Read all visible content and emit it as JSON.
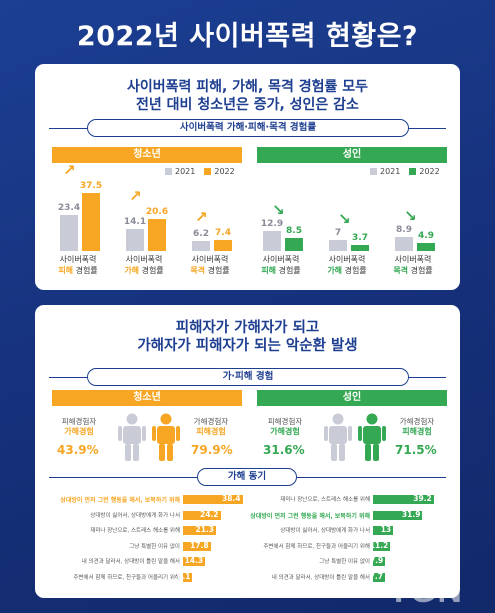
{
  "page_title": "2022년 사이버폭력 현황은?",
  "section1": {
    "headline1": "사이버폭력 피해, 가해, 목격 경험률 모두",
    "headline2": "전년 대비 청소년은 증가, 성인은 감소",
    "pill": "사이버폭력 가해·피해·목격 경험률",
    "youth_label": "청소년",
    "adult_label": "성인",
    "legend_2021": "2021",
    "legend_2022": "2022",
    "cat_prefix": "사이버폭력",
    "cat_suffix": "경험률",
    "cat_victim": "피해",
    "cat_offender": "가해",
    "cat_witness": "목격",
    "colors": {
      "gray": "#c9cbd6",
      "youth": "#f6a623",
      "adult": "#34a853"
    }
  },
  "chart_data": [
    {
      "type": "bar",
      "title": "청소년",
      "categories": [
        "피해",
        "가해",
        "목격"
      ],
      "series": [
        {
          "name": "2021",
          "values": [
            23.4,
            14.1,
            6.2
          ]
        },
        {
          "name": "2022",
          "values": [
            37.5,
            20.6,
            7.4
          ]
        }
      ]
    },
    {
      "type": "bar",
      "title": "성인",
      "categories": [
        "피해",
        "가해",
        "목격"
      ],
      "series": [
        {
          "name": "2021",
          "values": [
            12.9,
            7.0,
            8.9
          ]
        },
        {
          "name": "2022",
          "values": [
            8.5,
            3.7,
            4.9
          ]
        }
      ]
    },
    {
      "type": "bar",
      "title": "가해 동기",
      "subtitle": "청소년",
      "categories": [
        "상대방이 먼저 그런 행동을 해서, 보복하기 위해",
        "상대방이 싫어서, 상대방에게 화가 나서",
        "재미나 장난으로, 스트레스 해소를 위해",
        "그냥 특별한 이유 없이",
        "내 의견과 달라서, 상대방이 틀린 말을 해서",
        "주변에서 함께 하므로, 친구들과 어울리기 위해"
      ],
      "values": [
        38.4,
        24.2,
        21.3,
        17.8,
        14.3,
        6.1
      ]
    },
    {
      "type": "bar",
      "title": "가해 동기",
      "subtitle": "성인",
      "categories": [
        "재미나 장난으로, 스트레스 해소를 위해",
        "상대방이 먼저 그런 행동을 해서, 보복하기 위해",
        "상대방이 싫어서, 상대방에게 화가 나서",
        "주변에서 함께 하므로, 친구들과 어울리기 위해",
        "그냥 특별한 이유 없이",
        "내 의견과 달라서, 상대방이 틀린 말을 해서"
      ],
      "values": [
        39.2,
        31.9,
        13.0,
        11.2,
        7.9,
        7.7
      ]
    }
  ],
  "section2": {
    "headline1": "피해자가 가해자가 되고",
    "headline2": "가해자가 피해자가 되는 악순환 발생",
    "pill": "가·피해 경험",
    "youth_label": "청소년",
    "adult_label": "성인",
    "victim_line1": "피해경험자",
    "victim_line2": "가해경험",
    "offender_line1": "가해경험자",
    "offender_line2": "피해경험",
    "youth_victim_pct": "43.9%",
    "youth_offender_pct": "79.9%",
    "adult_victim_pct": "31.6%",
    "adult_offender_pct": "71.5%",
    "motive_title": "가해 동기"
  },
  "watermark": "TGN"
}
